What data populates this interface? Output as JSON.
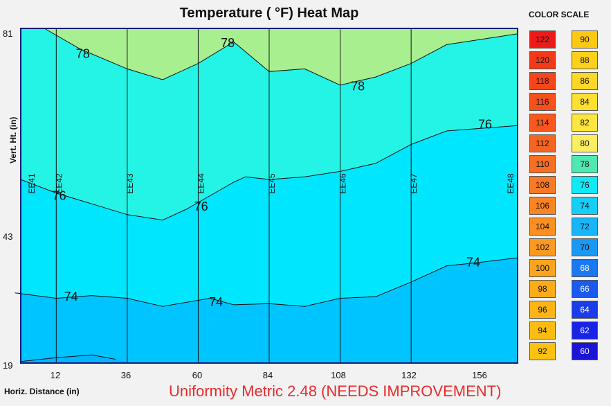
{
  "chart_data": {
    "type": "heatmap",
    "title": "Temperature ( °F) Heat Map",
    "xlabel": "Horiz. Distance (in)",
    "ylabel": "Vert. Ht. (in)",
    "xlim": [
      0,
      168
    ],
    "ylim": [
      19,
      81
    ],
    "x_ticks": [
      "12",
      "36",
      "60",
      "84",
      "108",
      "132",
      "156"
    ],
    "y_ticks": [
      "19",
      "43",
      "81"
    ],
    "sensors": [
      {
        "label": "EE41",
        "x": 0
      },
      {
        "label": "EE42",
        "x": 12
      },
      {
        "label": "EE43",
        "x": 36
      },
      {
        "label": "EE44",
        "x": 60
      },
      {
        "label": "EE45",
        "x": 84
      },
      {
        "label": "EE46",
        "x": 108
      },
      {
        "label": "EE47",
        "x": 132
      },
      {
        "label": "EE48",
        "x": 168
      }
    ],
    "contours": [
      {
        "level": "72",
        "points": [
          [
            0,
            19.3
          ],
          [
            12,
            20.0
          ],
          [
            24,
            20.5
          ],
          [
            32,
            19.7
          ]
        ],
        "labels": []
      },
      {
        "level": "74",
        "points": [
          [
            -2,
            32
          ],
          [
            12,
            31
          ],
          [
            24,
            31.5
          ],
          [
            36,
            31
          ],
          [
            48,
            29.5
          ],
          [
            64,
            31
          ],
          [
            72,
            29.8
          ],
          [
            84,
            30
          ],
          [
            96,
            29.5
          ],
          [
            108,
            31
          ],
          [
            120,
            31.3
          ],
          [
            132,
            34
          ],
          [
            144,
            37
          ],
          [
            156,
            37.7
          ],
          [
            168,
            38.5
          ]
        ],
        "labels": [
          [
            17,
            31.3
          ],
          [
            66,
            30.3
          ],
          [
            153,
            37.7
          ]
        ]
      },
      {
        "level": "76",
        "points": [
          [
            0,
            53
          ],
          [
            12,
            50.5
          ],
          [
            24,
            48.5
          ],
          [
            36,
            46.5
          ],
          [
            48,
            45.5
          ],
          [
            56,
            47.5
          ],
          [
            64,
            50
          ],
          [
            72,
            52.5
          ],
          [
            76,
            53.5
          ],
          [
            84,
            53
          ],
          [
            96,
            53.5
          ],
          [
            108,
            54.5
          ],
          [
            120,
            56
          ],
          [
            132,
            59.5
          ],
          [
            144,
            62
          ],
          [
            156,
            62.5
          ],
          [
            168,
            63
          ]
        ],
        "labels": [
          [
            13,
            50
          ],
          [
            61,
            48
          ],
          [
            157,
            63.2
          ]
        ]
      },
      {
        "level": "78",
        "points": [
          [
            8,
            81
          ],
          [
            20,
            77.2
          ],
          [
            36,
            73.5
          ],
          [
            48,
            71.5
          ],
          [
            60,
            74.5
          ],
          [
            72,
            78.5
          ],
          [
            84,
            73
          ],
          [
            96,
            73.5
          ],
          [
            108,
            70.5
          ],
          [
            120,
            72
          ],
          [
            132,
            74.5
          ],
          [
            144,
            78
          ],
          [
            156,
            79
          ],
          [
            168,
            80
          ]
        ],
        "labels": [
          [
            21,
            76.3
          ],
          [
            70,
            78.3
          ],
          [
            114,
            70.3
          ]
        ]
      }
    ],
    "fill_colors": {
      "below_72": "#00b6ff",
      "band_72_74": "#00c4ff",
      "band_74_76": "#00e6ff",
      "band_76_78": "#24f4e6",
      "above_78": "#a8ef90"
    }
  },
  "color_scale": {
    "title": "COLOR SCALE",
    "columns": [
      [
        {
          "value": "122",
          "color": "#ee1a1a"
        },
        {
          "value": "120",
          "color": "#f23a1a"
        },
        {
          "value": "118",
          "color": "#f4461c"
        },
        {
          "value": "116",
          "color": "#f5501d"
        },
        {
          "value": "114",
          "color": "#f6581f"
        },
        {
          "value": "112",
          "color": "#f76420"
        },
        {
          "value": "110",
          "color": "#f86e22"
        },
        {
          "value": "108",
          "color": "#f97a24"
        },
        {
          "value": "106",
          "color": "#fa8424"
        },
        {
          "value": "104",
          "color": "#fb8f22"
        },
        {
          "value": "102",
          "color": "#fc9a20"
        },
        {
          "value": "100",
          "color": "#fda41e"
        },
        {
          "value": "98",
          "color": "#fdac18"
        },
        {
          "value": "96",
          "color": "#fdb414"
        },
        {
          "value": "94",
          "color": "#fdbc12"
        },
        {
          "value": "92",
          "color": "#fdc210"
        }
      ],
      [
        {
          "value": "90",
          "color": "#fdc812"
        },
        {
          "value": "88",
          "color": "#fdd01a"
        },
        {
          "value": "86",
          "color": "#fdd824"
        },
        {
          "value": "84",
          "color": "#fde030"
        },
        {
          "value": "82",
          "color": "#fde63e"
        },
        {
          "value": "80",
          "color": "#fdee60"
        },
        {
          "value": "78",
          "color": "#4fe8b0"
        },
        {
          "value": "76",
          "color": "#12e8f6"
        },
        {
          "value": "74",
          "color": "#16cff8"
        },
        {
          "value": "72",
          "color": "#18b6f8"
        },
        {
          "value": "70",
          "color": "#1a98f6"
        },
        {
          "value": "68",
          "color": "#1a78f2"
        },
        {
          "value": "66",
          "color": "#1a5aee"
        },
        {
          "value": "64",
          "color": "#1a3cea"
        },
        {
          "value": "62",
          "color": "#1a22e6"
        },
        {
          "value": "60",
          "color": "#1a14d8"
        }
      ]
    ]
  },
  "uniformity": "Uniformity Metric 2.48 (NEEDS IMPROVEMENT)"
}
